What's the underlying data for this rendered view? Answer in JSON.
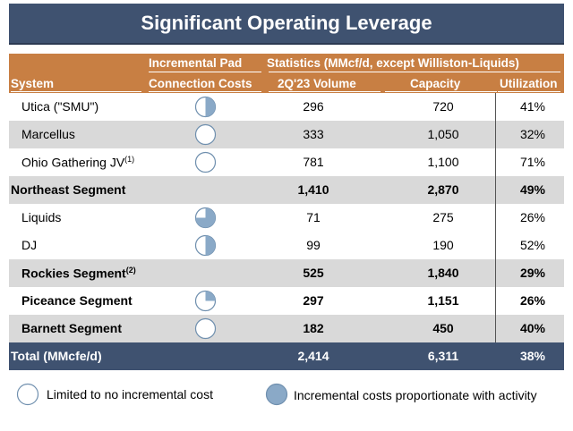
{
  "title": "Significant Operating Leverage",
  "header": {
    "system": "System",
    "pad_line1": "Incremental Pad",
    "pad_line2": "Connection Costs",
    "stats": "Statistics (MMcf/d, except Williston-Liquids)",
    "volume": "2Q'23 Volume",
    "capacity": "Capacity",
    "utilization": "Utilization"
  },
  "rows": [
    {
      "name": "Utica (\"SMU\")",
      "sup": "",
      "pie": 0.5,
      "volume": "296",
      "capacity": "720",
      "utilization": "41%",
      "style": "sub",
      "shade": false
    },
    {
      "name": "Marcellus",
      "sup": "",
      "pie": 0,
      "volume": "333",
      "capacity": "1,050",
      "utilization": "32%",
      "style": "sub",
      "shade": true
    },
    {
      "name": "Ohio Gathering JV",
      "sup": "(1)",
      "pie": 0,
      "volume": "781",
      "capacity": "1,100",
      "utilization": "71%",
      "style": "sub",
      "shade": false
    },
    {
      "name": "Northeast Segment",
      "sup": "",
      "pie": null,
      "volume": "1,410",
      "capacity": "2,870",
      "utilization": "49%",
      "style": "segment",
      "shade": true
    },
    {
      "name": "Liquids",
      "sup": "",
      "pie": 0.75,
      "volume": "71",
      "capacity": "275",
      "utilization": "26%",
      "style": "sub",
      "shade": false
    },
    {
      "name": "DJ",
      "sup": "",
      "pie": 0.5,
      "volume": "99",
      "capacity": "190",
      "utilization": "52%",
      "style": "sub",
      "shade": false
    },
    {
      "name": "Rockies Segment",
      "sup": "(2)",
      "pie": null,
      "volume": "525",
      "capacity": "1,840",
      "utilization": "29%",
      "style": "sub-bold",
      "shade": true
    },
    {
      "name": "Piceance Segment",
      "sup": "",
      "pie": 0.25,
      "volume": "297",
      "capacity": "1,151",
      "utilization": "26%",
      "style": "sub-bold",
      "shade": false
    },
    {
      "name": "Barnett Segment",
      "sup": "",
      "pie": 0,
      "volume": "182",
      "capacity": "450",
      "utilization": "40%",
      "style": "sub-bold",
      "shade": true
    }
  ],
  "total": {
    "name": "Total (MMcfe/d)",
    "volume": "2,414",
    "capacity": "6,311",
    "utilization": "38%"
  },
  "legend": {
    "empty_label": "Limited to no incremental cost",
    "full_label": "Incremental costs proportionate with activity"
  },
  "colors": {
    "navy": "#3f5270",
    "orange": "#c87f43",
    "shade": "#d9d9d9",
    "pie_fill": "#8aa9c7",
    "pie_stroke": "#6f8fae"
  }
}
